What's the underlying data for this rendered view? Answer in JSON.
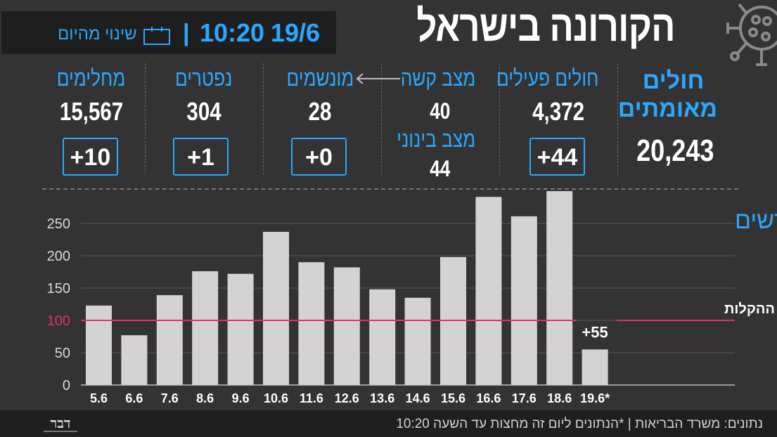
{
  "header": {
    "title": "הקורונה בישראל",
    "date": "19/6",
    "time": "10:20",
    "separator": "|",
    "change_label": "שינוי מהיום",
    "virus_icon": "virus-icon",
    "calendar_icon": "calendar-icon"
  },
  "stats": {
    "confirmed": {
      "label_line1": "חולים",
      "label_line2": "מאומתים",
      "value": "20,243"
    },
    "active": {
      "label": "חולים פעילים",
      "value": "4,372",
      "delta": "+44"
    },
    "severe": {
      "label": "מצב קשה",
      "value": "40",
      "moderate_label": "מצב בינוני",
      "moderate_value": "44",
      "arrow_icon": "arrow-left-icon"
    },
    "ventilated": {
      "label": "מונשמים",
      "value": "28",
      "delta": "+0"
    },
    "deaths": {
      "label": "נפטרים",
      "value": "304",
      "delta": "+1"
    },
    "recovered": {
      "label": "מחלימים",
      "value": "15,567",
      "delta": "+10"
    }
  },
  "colors": {
    "background": "#333333",
    "accent_blue": "#2aa8ff",
    "bar": "#d3d3d3",
    "threshold_line": "#e0306a",
    "footer_bg": "#1f1f1f"
  },
  "chart_data": {
    "type": "bar",
    "title": "מקרים חדשים",
    "categories": [
      "5.6",
      "6.6",
      "7.6",
      "8.6",
      "9.6",
      "10.6",
      "11.6",
      "12.6",
      "13.6",
      "14.6",
      "15.6",
      "16.6",
      "17.6",
      "18.6",
      "19.6*"
    ],
    "values": [
      123,
      77,
      139,
      176,
      172,
      237,
      190,
      182,
      148,
      135,
      198,
      291,
      261,
      300,
      55
    ],
    "yticks": [
      0,
      50,
      100,
      150,
      200,
      250
    ],
    "ylim": [
      0,
      300
    ],
    "grid": true,
    "threshold": {
      "value": 100,
      "label": "רף להמשך ההקלות"
    },
    "annotation": {
      "category": "19.6*",
      "text": "+55"
    }
  },
  "footer": {
    "text": "נתונים: משרד הבריאות  |  *הנתונים ליום זה מחצות עד השעה 10:20",
    "logo_text": "דבר",
    "logo_icon": "davar-logo"
  }
}
